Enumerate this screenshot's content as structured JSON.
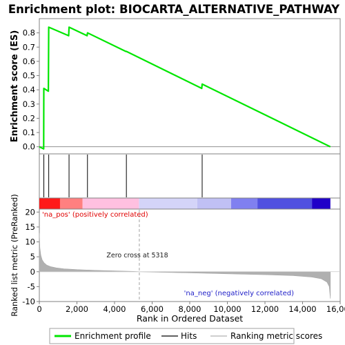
{
  "chart_data": {
    "type": "line",
    "title": "Enrichment plot: BIOCARTA_ALTERNATIVE_PATHWAY",
    "xlabel": "Rank in Ordered Dataset",
    "es_panel": {
      "ylabel": "Enrichment score (ES)",
      "ylim": [
        -0.05,
        0.9
      ],
      "y_ticks": [
        "0.0",
        "0.1",
        "0.2",
        "0.3",
        "0.4",
        "0.5",
        "0.6",
        "0.7",
        "0.8"
      ],
      "series": [
        {
          "name": "Enrichment profile",
          "x": [
            0,
            230,
            240,
            480,
            500,
            1560,
            1580,
            2540,
            2560,
            4600,
            4630,
            8640,
            8660,
            15480
          ],
          "y": [
            0.0,
            -0.015,
            0.41,
            0.39,
            0.84,
            0.78,
            0.84,
            0.78,
            0.8,
            0.67,
            0.67,
            0.41,
            0.44,
            0.0
          ]
        }
      ]
    },
    "hits": [
      240,
      500,
      1580,
      2560,
      4630,
      8660
    ],
    "metric_panel": {
      "ylabel": "Ranked list metric (PreRanked)",
      "ylim": [
        -10,
        21
      ],
      "y_ticks": [
        "20",
        "15",
        "10",
        "5",
        "0",
        "-5",
        "-10"
      ],
      "x_ticks": [
        "0",
        "2,000",
        "4,000",
        "6,000",
        "8,000",
        "10,000",
        "12,000",
        "14,000",
        "16,000"
      ],
      "xlim": [
        0,
        16000
      ],
      "n_genes": 15480,
      "zero_cross": 5318,
      "profile": [
        [
          0,
          13
        ],
        [
          30,
          8
        ],
        [
          80,
          5.5
        ],
        [
          150,
          4
        ],
        [
          250,
          3
        ],
        [
          400,
          2.2
        ],
        [
          600,
          1.7
        ],
        [
          900,
          1.3
        ],
        [
          1300,
          1.0
        ],
        [
          2000,
          0.7
        ],
        [
          3000,
          0.45
        ],
        [
          4000,
          0.3
        ],
        [
          5000,
          0.1
        ],
        [
          5318,
          0
        ],
        [
          6500,
          -0.2
        ],
        [
          8000,
          -0.4
        ],
        [
          10000,
          -0.7
        ],
        [
          12000,
          -1.0
        ],
        [
          13500,
          -1.3
        ],
        [
          14500,
          -1.8
        ],
        [
          15000,
          -2.4
        ],
        [
          15300,
          -3.5
        ],
        [
          15420,
          -5
        ],
        [
          15480,
          -9
        ]
      ]
    },
    "annotations": {
      "pos_label": "'na_pos' (positively correlated)",
      "neg_label": "'na_neg' (negatively correlated)",
      "zero_cross_label": "Zero cross at 5318"
    },
    "legend": {
      "placement": "bottom",
      "items": [
        "Enrichment profile",
        "Hits",
        "Ranking metric scores"
      ]
    },
    "colors": {
      "profile": "#00e600",
      "hits": "#000000",
      "metric": "#b0b0b0"
    },
    "color_bar": [
      {
        "x0": 0,
        "x1": 1100,
        "color": "#ff1a1a"
      },
      {
        "x0": 1100,
        "x1": 2300,
        "color": "#ff8080"
      },
      {
        "x0": 2300,
        "x1": 5300,
        "color": "#ffc0e0"
      },
      {
        "x0": 5300,
        "x1": 8400,
        "color": "#d4d4f8"
      },
      {
        "x0": 8400,
        "x1": 10200,
        "color": "#c0c0f4"
      },
      {
        "x0": 10200,
        "x1": 11600,
        "color": "#8080f0"
      },
      {
        "x0": 11600,
        "x1": 14500,
        "color": "#5050e0"
      },
      {
        "x0": 14500,
        "x1": 15480,
        "color": "#2000c8"
      }
    ]
  }
}
